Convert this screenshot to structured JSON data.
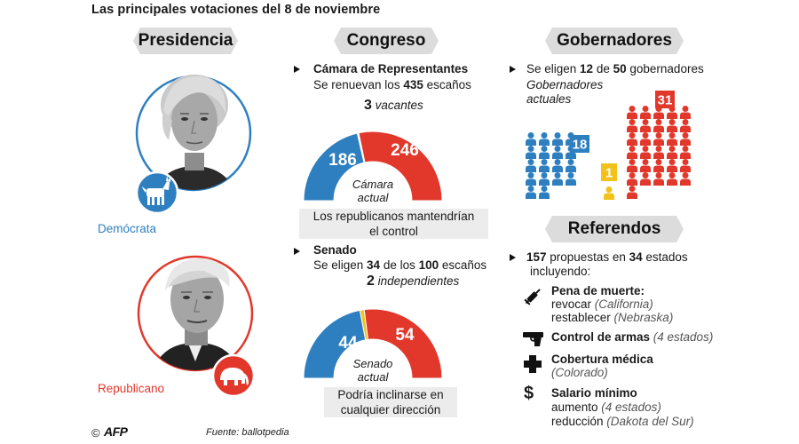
{
  "title": "Las principales votaciones del 8 de noviembre",
  "sections": {
    "presidency": "Presidencia",
    "congress": "Congreso",
    "governors": "Gobernadores",
    "referendums": "Referendos"
  },
  "colors": {
    "democrat": "#2e7fc0",
    "republican": "#e2382c",
    "other": "#f2c21b",
    "banner": "#dcdcdc",
    "box": "#ececec"
  },
  "presidency": {
    "democrat_label": "Demócrata",
    "republican_label": "Republicano",
    "democrat_icon": "donkey-icon",
    "republican_icon": "elephant-icon"
  },
  "house": {
    "heading": "Cámara de Representantes",
    "line_pre": "Se renuevan los ",
    "line_num": "435",
    "line_post": " escaños",
    "vacant_num": "3",
    "vacant_label": "vacantes",
    "center_label_1": "Cámara",
    "center_label_2": "actual",
    "caption_1": "Los republicanos mantendrían",
    "caption_2": "el control"
  },
  "senate": {
    "heading": "Senado",
    "line_pre": "Se eligen ",
    "line_num1": "34",
    "line_mid": " de los ",
    "line_num2": "100",
    "line_post": " escaños",
    "independent_num": "2",
    "independent_label": "independientes",
    "center_label_1": "Senado",
    "center_label_2": "actual",
    "caption_1": "Podría inclinarse en",
    "caption_2": "cualquier dirección"
  },
  "governors": {
    "line_pre": "Se eligen ",
    "line_num1": "12",
    "line_mid": " de ",
    "line_num2": "50",
    "line_post": " gobernadores",
    "current_label_1": "Gobernadores",
    "current_label_2": "actuales"
  },
  "referendums": {
    "line1_num1": "157",
    "line1_mid": " propuestas en ",
    "line1_num2": "34",
    "line1_post": " estados",
    "line2": "incluyendo:",
    "items": [
      {
        "icon": "syringe-icon",
        "title": "Pena de muerte:",
        "lines": [
          {
            "text": "revocar ",
            "note": "(California)"
          },
          {
            "text": "restablecer ",
            "note": "(Nebraska)"
          }
        ]
      },
      {
        "icon": "gun-icon",
        "title": "Control de armas",
        "title_note": " (4 estados)"
      },
      {
        "icon": "medical-cross-icon",
        "title": "Cobertura médica",
        "lines": [
          {
            "text": "",
            "note": "(Colorado)"
          }
        ]
      },
      {
        "icon": "dollar-icon",
        "title": "Salario mínimo",
        "lines": [
          {
            "text": "aumento ",
            "note": "(4 estados)"
          },
          {
            "text": "reducción ",
            "note": "(Dakota del Sur)"
          }
        ]
      }
    ]
  },
  "footer": {
    "copyright": "©",
    "agency": "AFP",
    "source": "Fuente: ballotpedia"
  },
  "chart_data": [
    {
      "type": "pie",
      "subtype": "half-donut",
      "categories": [
        "Demócrata",
        "Vacantes",
        "Republicano"
      ],
      "values": [
        186,
        3,
        246
      ],
      "labels": [
        "186",
        "3",
        "246"
      ]
    },
    {
      "type": "pie",
      "subtype": "half-donut",
      "categories": [
        "Demócrata",
        "Independientes",
        "Republicano"
      ],
      "values": [
        44,
        2,
        54
      ],
      "labels": [
        "44",
        "2",
        "54"
      ]
    },
    {
      "type": "bar",
      "subtype": "pictogram",
      "categories": [
        "Demócrata",
        "Independiente",
        "Republicano"
      ],
      "values": [
        18,
        1,
        31
      ],
      "labels": [
        "18",
        "1",
        "31"
      ]
    }
  ]
}
